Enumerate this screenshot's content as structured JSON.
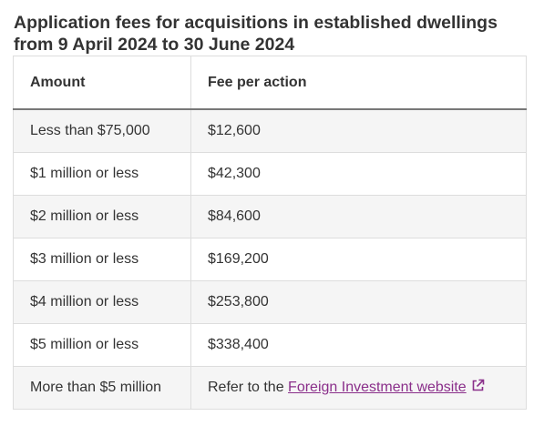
{
  "title": "Application fees for acquisitions in established dwellings from 9 April 2024 to 30 June 2024",
  "table": {
    "headers": [
      "Amount",
      "Fee per action"
    ],
    "rows": [
      [
        "Less than $75,000",
        "$12,600"
      ],
      [
        "$1 million or less",
        "$42,300"
      ],
      [
        "$2 million or less",
        "$84,600"
      ],
      [
        "$3 million or less",
        "$169,200"
      ],
      [
        "$4 million or less",
        "$253,800"
      ],
      [
        "$5 million or less",
        "$338,400"
      ]
    ],
    "last_row": {
      "amount": "More than $5 million",
      "fee_prefix": "Refer to the ",
      "fee_link_text": "Foreign Investment website",
      "fee_link_icon": "external-link-icon"
    }
  },
  "colors": {
    "link": "#8a2f8a",
    "stripe": "#f5f5f5",
    "border": "#dddddd",
    "header_rule": "#777777"
  }
}
